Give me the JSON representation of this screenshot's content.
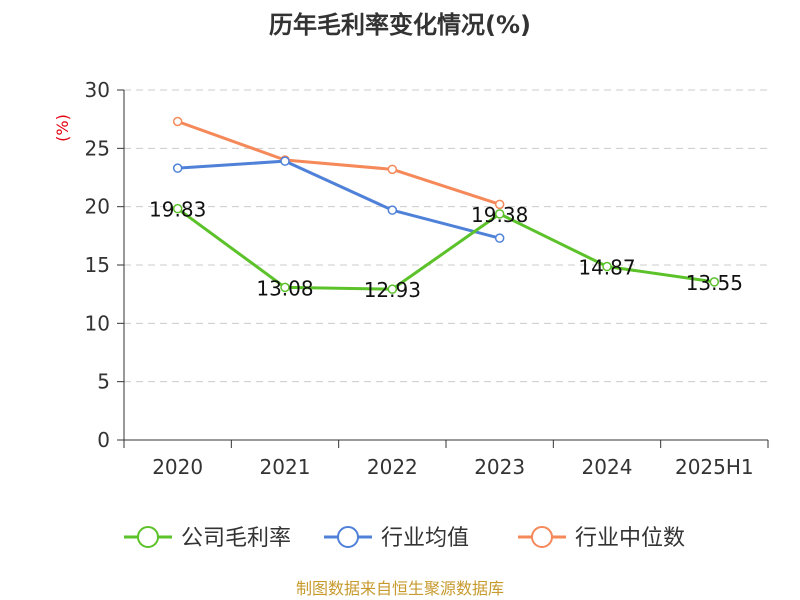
{
  "chart_data": {
    "type": "line",
    "title": "历年毛利率变化情况(%)",
    "ylabel": "(%)",
    "xlabel": "",
    "categories": [
      "2020",
      "2021",
      "2022",
      "2023",
      "2024",
      "2025H1"
    ],
    "ylim": [
      0,
      30
    ],
    "yticks": [
      0,
      5,
      10,
      15,
      20,
      25,
      30
    ],
    "grid": true,
    "legend_position": "bottom",
    "series": [
      {
        "name": "公司毛利率",
        "color": "#5cc22a",
        "values": [
          19.83,
          13.08,
          12.93,
          19.38,
          14.87,
          13.55
        ],
        "data_labels": [
          "19.83",
          "13.08",
          "12.93",
          "19.38",
          "14.87",
          "13.55"
        ]
      },
      {
        "name": "行业均值",
        "color": "#4f81d9",
        "values": [
          23.3,
          23.9,
          19.7,
          17.3,
          null,
          null
        ]
      },
      {
        "name": "行业中位数",
        "color": "#f5895a",
        "values": [
          27.3,
          24.0,
          23.2,
          20.2,
          null,
          null
        ]
      }
    ],
    "source": "制图数据来自恒生聚源数据库"
  }
}
